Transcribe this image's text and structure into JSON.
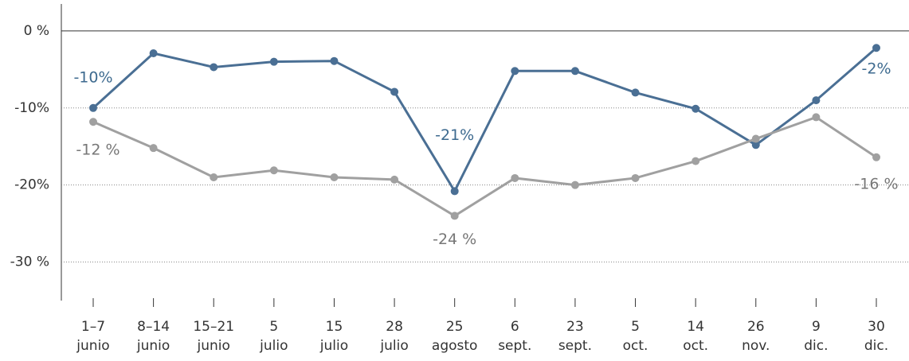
{
  "chart_data": {
    "type": "line",
    "categories": [
      [
        "1–7",
        "junio"
      ],
      [
        "8–14",
        "junio"
      ],
      [
        "15–21",
        "junio"
      ],
      [
        "5",
        "julio"
      ],
      [
        "15",
        "julio"
      ],
      [
        "28",
        "julio"
      ],
      [
        "25",
        "agosto"
      ],
      [
        "6",
        "sept."
      ],
      [
        "23",
        "sept."
      ],
      [
        "5",
        "oct."
      ],
      [
        "14",
        "oct."
      ],
      [
        "26",
        "nov."
      ],
      [
        "9",
        "dic."
      ],
      [
        "30",
        "dic."
      ]
    ],
    "series": [
      {
        "color": "#4a6f94",
        "values": [
          -10,
          -2.9,
          -4.7,
          -4,
          -3.9,
          -7.9,
          -20.8,
          -5.2,
          -5.2,
          -8,
          -10.1,
          -14.8,
          -9,
          -2.2
        ],
        "value_labels": [
          "-10%",
          null,
          null,
          null,
          null,
          null,
          "-21%",
          null,
          null,
          null,
          null,
          null,
          null,
          "-2%"
        ]
      },
      {
        "color": "#a0a0a0",
        "values": [
          -11.8,
          -15.2,
          -19,
          -18.1,
          -19,
          -19.3,
          -24,
          -19.1,
          -20,
          -19.1,
          -16.9,
          -14,
          -11.2,
          -16.4
        ],
        "value_labels": [
          "-12 %",
          null,
          null,
          null,
          null,
          null,
          "-24 %",
          null,
          null,
          null,
          null,
          null,
          null,
          "-16 %"
        ]
      }
    ],
    "ylim": [
      -35,
      3.5
    ],
    "yticks": [
      {
        "value": 0,
        "label": "0 %"
      },
      {
        "value": -10,
        "label": "-10%"
      },
      {
        "value": -20,
        "label": "-20%"
      },
      {
        "value": -30,
        "label": "-30 %"
      }
    ],
    "grid": true
  }
}
